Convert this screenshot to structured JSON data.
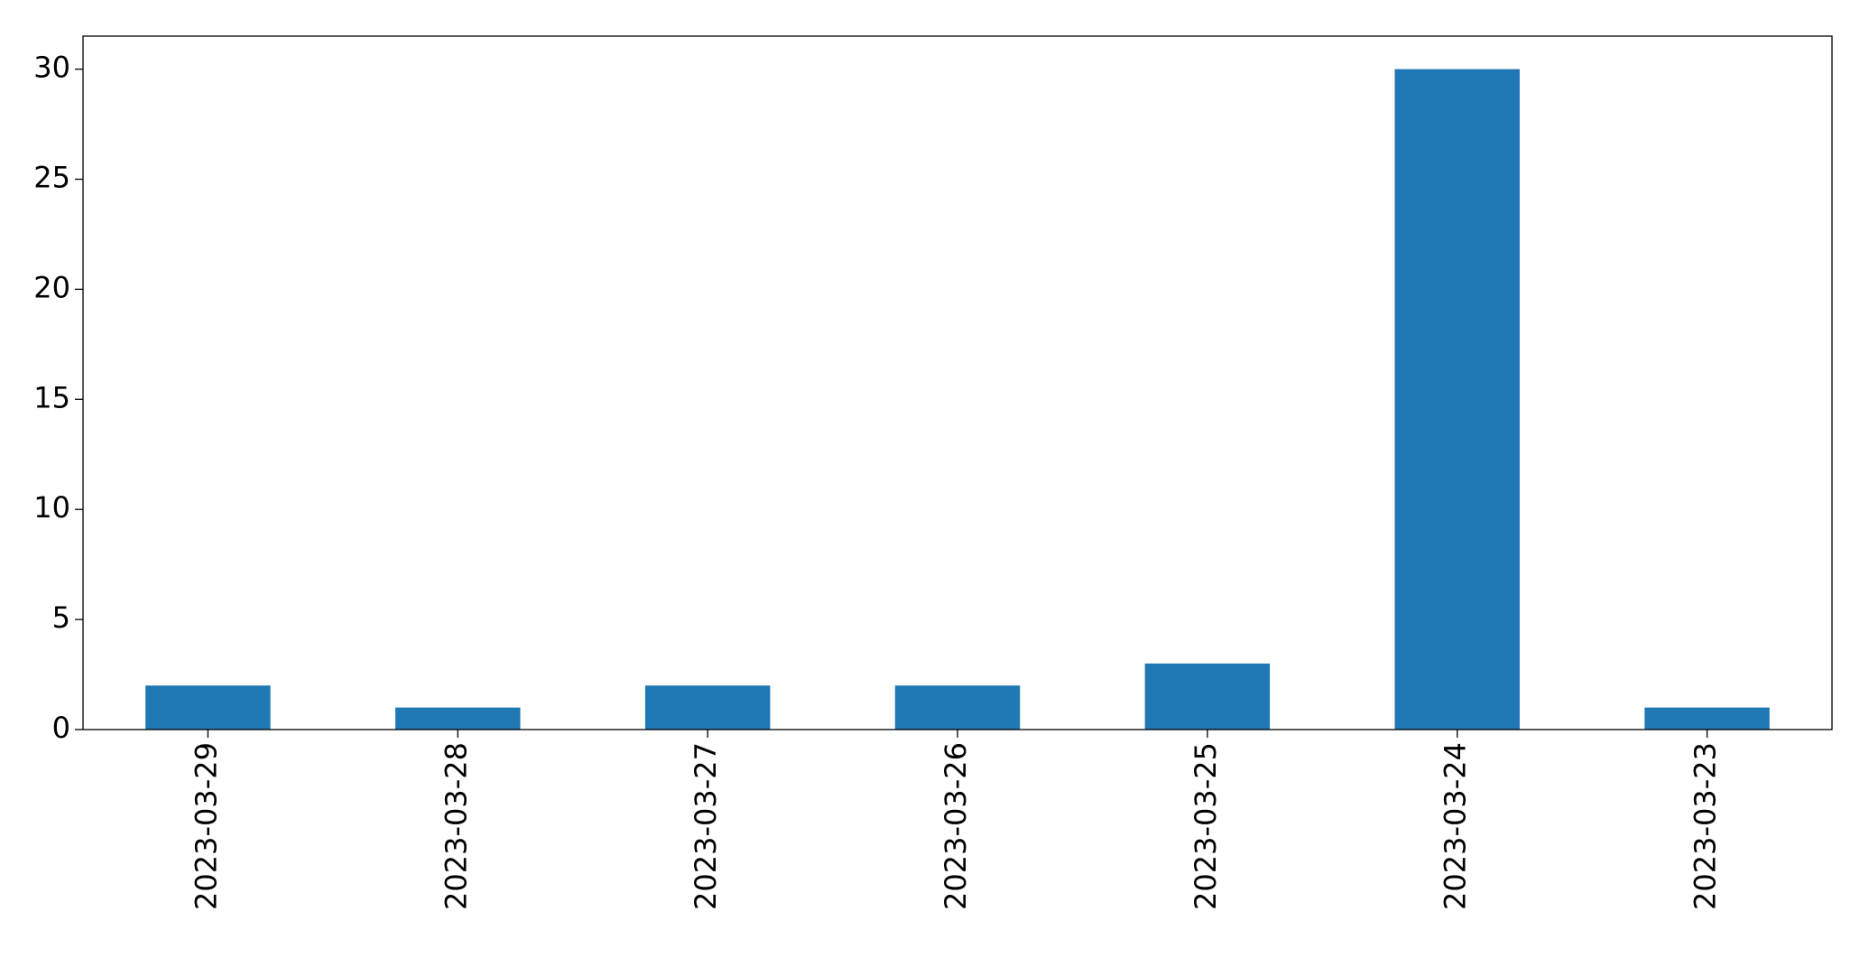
{
  "chart_data": {
    "type": "bar",
    "categories": [
      "2023-03-29",
      "2023-03-28",
      "2023-03-27",
      "2023-03-26",
      "2023-03-25",
      "2023-03-24",
      "2023-03-23"
    ],
    "values": [
      2,
      1,
      2,
      2,
      3,
      30,
      1
    ],
    "color": "#1f77b4",
    "ylim": [
      0,
      31.5
    ],
    "yticks": [
      0,
      5,
      10,
      15,
      20,
      25,
      30
    ],
    "grid": false
  }
}
